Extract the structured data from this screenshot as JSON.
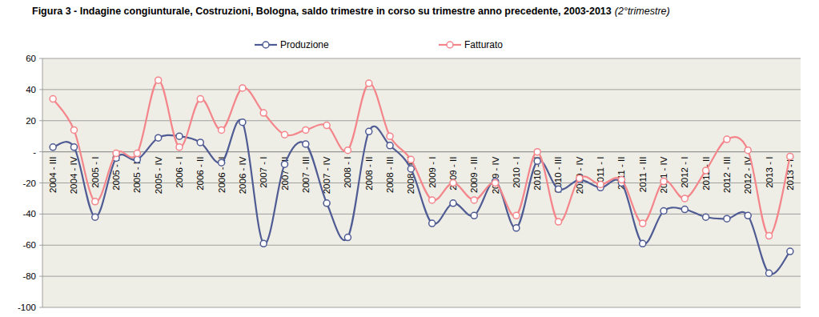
{
  "chart_data": {
    "type": "line",
    "title": "Figura 3 - Indagine congiunturale, Costruzioni, Bologna, saldo trimestre in corso su trimestre anno precedente, 2003-2013",
    "subtitle": "(2°trimestre)",
    "categories": [
      "2004 - III",
      "2004 - IV",
      "2005 - I",
      "2005 - II",
      "2005 - III",
      "2005 - IV",
      "2006 - I",
      "2006 - II",
      "2006 - III",
      "2006 - IV",
      "2007 - I",
      "2007 - II",
      "2007 - III",
      "2007 - IV",
      "2008 - I",
      "2008 - II",
      "2008 - III",
      "2008 - IV",
      "2009 - I",
      "2009 - II",
      "2009 - III",
      "2009 - IV",
      "2010 - I",
      "2010 - II",
      "2010 - III",
      "2010 - IV",
      "2011 - I",
      "2011 - II",
      "2011 - III",
      "2011 - IV",
      "2012 - I",
      "2012 - II",
      "2012 - III",
      "2012 - IV",
      "2013 - I",
      "2013 - II"
    ],
    "series": [
      {
        "name": "Produzione",
        "color": "#4f5b93",
        "marker": "circle",
        "values": [
          3,
          3,
          -42,
          -4,
          -5,
          9,
          10,
          6,
          -7,
          19,
          -59,
          -8,
          5,
          -33,
          -55,
          13,
          4,
          -11,
          -46,
          -33,
          -41,
          -19,
          -49,
          -6,
          -24,
          -18,
          -23,
          -20,
          -59,
          -38,
          -37,
          -42,
          -43,
          -41,
          -78,
          -64
        ]
      },
      {
        "name": "Fatturato",
        "color": "#f4858a",
        "marker": "circle",
        "values": [
          34,
          14,
          -32,
          -1,
          -1,
          46,
          3,
          34,
          14,
          41,
          25,
          11,
          14,
          17,
          1,
          44,
          10,
          -5,
          -31,
          -20,
          -31,
          -20,
          -41,
          0,
          -45,
          -17,
          -21,
          -18,
          -46,
          -19,
          -30,
          -12,
          8,
          1,
          -54,
          -3
        ]
      }
    ],
    "ylim": [
      -100,
      60
    ],
    "yticks": [
      60,
      40,
      20,
      {
        "value": 0,
        "label": "-"
      },
      -20,
      -40,
      -60,
      -80,
      -100
    ],
    "grid": true,
    "legend": "top"
  }
}
